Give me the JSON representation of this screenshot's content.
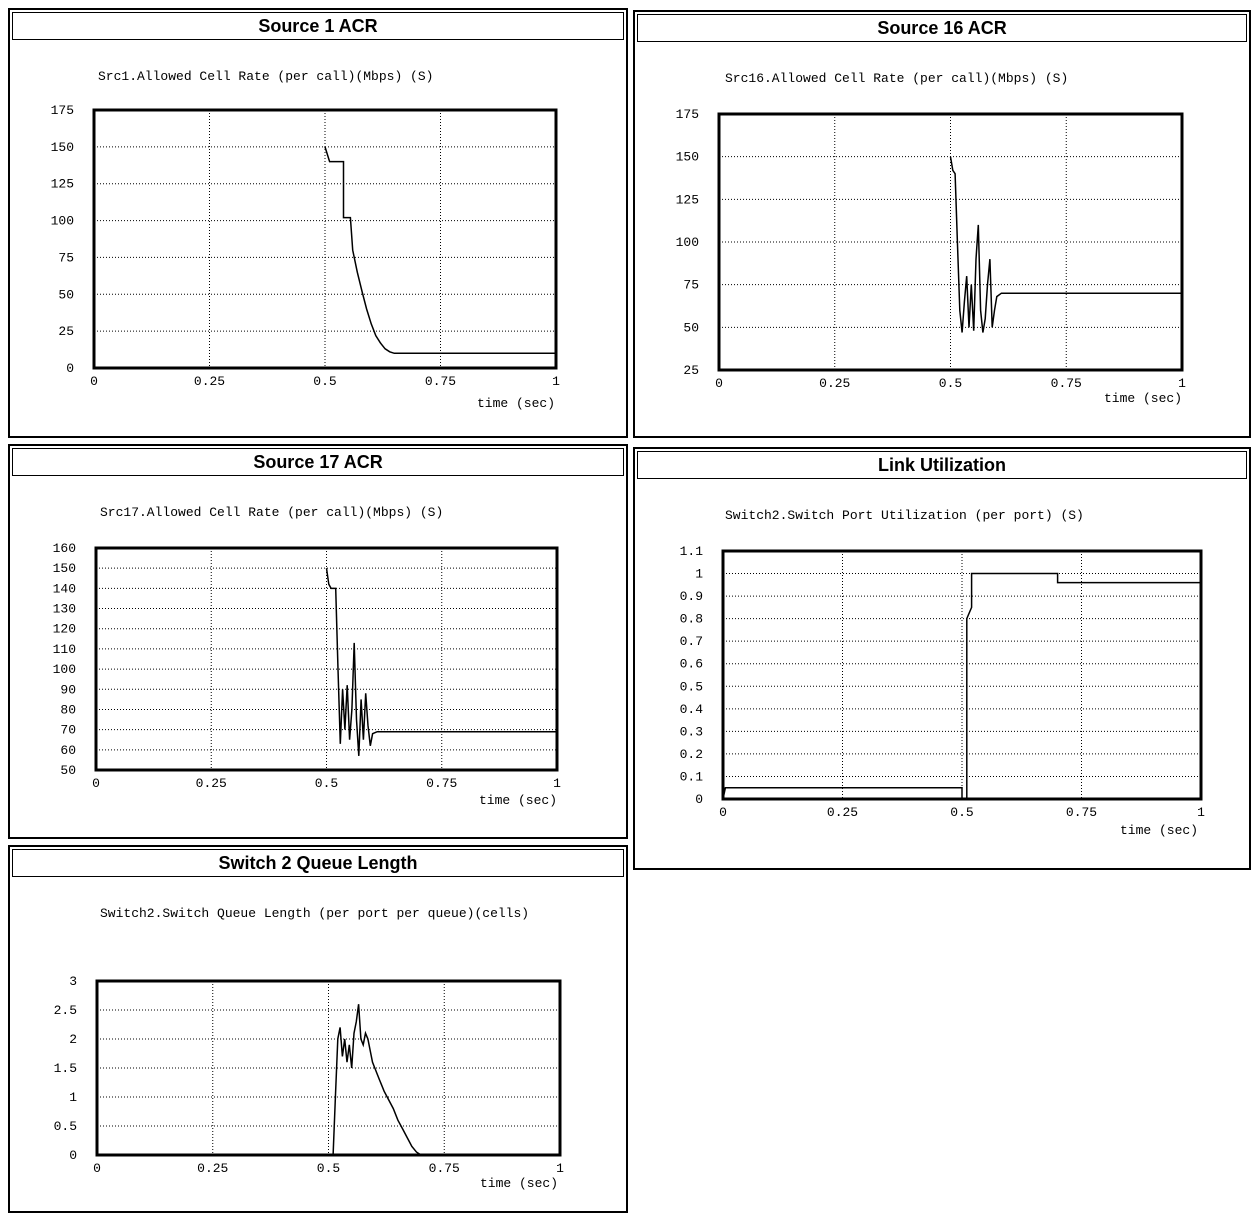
{
  "chart_data": [
    {
      "type": "line",
      "title": "Source 1 ACR",
      "subtitle": "Src1.Allowed Cell Rate (per call)(Mbps) (S)",
      "xlabel": "time (sec)",
      "xlim": [
        0,
        1
      ],
      "ylim": [
        0,
        175
      ],
      "xticks": [
        0,
        0.25,
        0.5,
        0.75,
        1
      ],
      "xtick_labels": [
        "0",
        "0.25",
        "0.5",
        "0.75",
        "1"
      ],
      "yticks": [
        0,
        25,
        50,
        75,
        100,
        125,
        150,
        175
      ],
      "ytick_labels": [
        "0",
        "25",
        "50",
        "75",
        "100",
        "125",
        "150",
        "175"
      ],
      "grid": true,
      "series": [
        {
          "x": [
            0.5,
            0.51,
            0.52,
            0.54,
            0.54,
            0.555,
            0.56,
            0.57,
            0.58,
            0.59,
            0.6,
            0.61,
            0.62,
            0.63,
            0.64,
            0.65,
            1.0
          ],
          "y": [
            150,
            140,
            140,
            140,
            102,
            102,
            80,
            65,
            52,
            40,
            30,
            22,
            17,
            13,
            11,
            10,
            10
          ]
        }
      ]
    },
    {
      "type": "line",
      "title": "Source 16 ACR",
      "subtitle": "Src16.Allowed Cell Rate (per call)(Mbps) (S)",
      "xlabel": "time (sec)",
      "xlim": [
        0,
        1
      ],
      "ylim": [
        25,
        175
      ],
      "xticks": [
        0,
        0.25,
        0.5,
        0.75,
        1
      ],
      "xtick_labels": [
        "0",
        "0.25",
        "0.5",
        "0.75",
        "1"
      ],
      "yticks": [
        25,
        50,
        75,
        100,
        125,
        150,
        175
      ],
      "ytick_labels": [
        "25",
        "50",
        "75",
        "100",
        "125",
        "150",
        "175"
      ],
      "grid": true,
      "series": [
        {
          "x": [
            0.5,
            0.505,
            0.51,
            0.515,
            0.52,
            0.525,
            0.53,
            0.535,
            0.54,
            0.545,
            0.55,
            0.555,
            0.56,
            0.565,
            0.57,
            0.575,
            0.58,
            0.585,
            0.59,
            0.595,
            0.6,
            0.61,
            0.62,
            1.0
          ],
          "y": [
            150,
            142,
            140,
            100,
            60,
            47,
            65,
            80,
            50,
            75,
            48,
            90,
            110,
            60,
            47,
            55,
            75,
            90,
            50,
            60,
            68,
            70,
            70,
            70
          ]
        }
      ]
    },
    {
      "type": "line",
      "title": "Source 17 ACR",
      "subtitle": "Src17.Allowed Cell Rate (per call)(Mbps) (S)",
      "xlabel": "time (sec)",
      "xlim": [
        0,
        1
      ],
      "ylim": [
        50,
        160
      ],
      "xticks": [
        0,
        0.25,
        0.5,
        0.75,
        1
      ],
      "xtick_labels": [
        "0",
        "0.25",
        "0.5",
        "0.75",
        "1"
      ],
      "yticks": [
        50,
        60,
        70,
        80,
        90,
        100,
        110,
        120,
        130,
        140,
        150,
        160
      ],
      "ytick_labels": [
        "50",
        "60",
        "70",
        "80",
        "90",
        "100",
        "110",
        "120",
        "130",
        "140",
        "150",
        "160"
      ],
      "grid": true,
      "series": [
        {
          "x": [
            0.5,
            0.505,
            0.51,
            0.52,
            0.525,
            0.53,
            0.535,
            0.54,
            0.545,
            0.55,
            0.555,
            0.56,
            0.565,
            0.57,
            0.575,
            0.58,
            0.585,
            0.59,
            0.595,
            0.6,
            0.61,
            0.62,
            1.0
          ],
          "y": [
            150,
            142,
            140,
            140,
            100,
            63,
            90,
            70,
            92,
            65,
            80,
            113,
            75,
            57,
            85,
            65,
            88,
            72,
            62,
            68,
            69,
            69,
            69
          ]
        }
      ]
    },
    {
      "type": "line",
      "title": "Link Utilization",
      "subtitle": "Switch2.Switch Port Utilization (per port) (S)",
      "xlabel": "time (sec)",
      "xlim": [
        0,
        1
      ],
      "ylim": [
        0,
        1.1
      ],
      "xticks": [
        0,
        0.25,
        0.5,
        0.75,
        1
      ],
      "xtick_labels": [
        "0",
        "0.25",
        "0.5",
        "0.75",
        "1"
      ],
      "yticks": [
        0,
        0.1,
        0.2,
        0.3,
        0.4,
        0.5,
        0.6,
        0.7,
        0.8,
        0.9,
        1.0,
        1.1
      ],
      "ytick_labels": [
        "0",
        "0.1",
        "0.2",
        "0.3",
        "0.4",
        "0.5",
        "0.6",
        "0.7",
        "0.8",
        "0.9",
        "1",
        "1.1"
      ],
      "grid": true,
      "series": [
        {
          "x": [
            0.0,
            0.005,
            0.5,
            0.5,
            0.51,
            0.51,
            0.52,
            0.52,
            0.7,
            0.7,
            0.71,
            1.0
          ],
          "y": [
            0.0,
            0.05,
            0.05,
            0.0,
            0.0,
            0.8,
            0.85,
            1.0,
            1.0,
            0.96,
            0.96,
            0.96
          ]
        }
      ]
    },
    {
      "type": "line",
      "title": "Switch 2 Queue Length",
      "subtitle": "Switch2.Switch Queue Length (per port per queue)(cells)",
      "xlabel": "time (sec)",
      "xlim": [
        0,
        1
      ],
      "ylim": [
        0,
        3
      ],
      "xticks": [
        0,
        0.25,
        0.5,
        0.75,
        1
      ],
      "xtick_labels": [
        "0",
        "0.25",
        "0.5",
        "0.75",
        "1"
      ],
      "yticks": [
        0,
        0.5,
        1,
        1.5,
        2,
        2.5,
        3
      ],
      "ytick_labels": [
        "0",
        "0.5",
        "1",
        "1.5",
        "2",
        "2.5",
        "3"
      ],
      "grid": true,
      "series": [
        {
          "x": [
            0.5,
            0.51,
            0.515,
            0.52,
            0.525,
            0.53,
            0.535,
            0.54,
            0.545,
            0.55,
            0.555,
            0.56,
            0.565,
            0.57,
            0.575,
            0.58,
            0.585,
            0.59,
            0.595,
            0.6,
            0.61,
            0.62,
            0.63,
            0.64,
            0.65,
            0.66,
            0.67,
            0.68,
            0.69,
            0.7,
            1.0
          ],
          "y": [
            0.0,
            0.0,
            1.0,
            2.0,
            2.2,
            1.7,
            2.0,
            1.6,
            1.9,
            1.5,
            2.1,
            2.3,
            2.6,
            2.0,
            1.9,
            2.1,
            2.0,
            1.8,
            1.6,
            1.5,
            1.3,
            1.1,
            0.95,
            0.8,
            0.6,
            0.45,
            0.3,
            0.15,
            0.05,
            0.0,
            0.0
          ]
        }
      ]
    }
  ]
}
